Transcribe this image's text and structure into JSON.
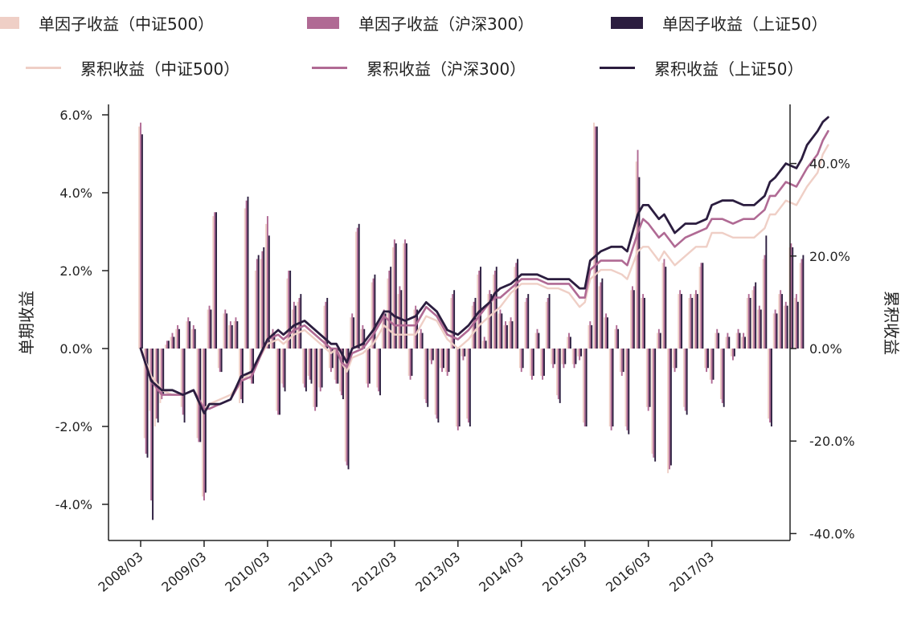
{
  "colors": {
    "zz500": "#efcfc6",
    "hs300": "#b06a94",
    "sz50": "#2b1d3f",
    "axis": "#222222"
  },
  "legend": {
    "bars": [
      {
        "key": "zz500",
        "label": "单因子收益（中证500）"
      },
      {
        "key": "hs300",
        "label": "单因子收益（沪深300）"
      },
      {
        "key": "sz50",
        "label": "单因子收益（上证50）"
      }
    ],
    "lines": [
      {
        "key": "zz500",
        "label": "累积收益（中证500）"
      },
      {
        "key": "hs300",
        "label": "累积收益（沪深300）"
      },
      {
        "key": "sz50",
        "label": "累积收益（上证50）"
      }
    ]
  },
  "chart_data": {
    "type": "bar+line",
    "title": "",
    "ylabel_left": "单期收益",
    "ylabel_right": "累积收益",
    "ylim_left": [
      -5.0,
      6.5
    ],
    "ylim_right": [
      -41.0,
      53.0
    ],
    "yticks_left": [
      "6.0%",
      "4.0%",
      "2.0%",
      "0.0%",
      "-2.0%",
      "-4.0%"
    ],
    "yticks_left_values": [
      6,
      4,
      2,
      0,
      -2,
      -4
    ],
    "yticks_right": [
      "40.0%",
      "20.0%",
      "0.0%",
      "-20.0%",
      "-40.0%"
    ],
    "yticks_right_values": [
      40,
      20,
      0,
      -20,
      -40
    ],
    "xticks": [
      "2008/03",
      "2009/03",
      "2010/03",
      "2011/03",
      "2012/03",
      "2013/03",
      "2014/03",
      "2015/03",
      "2016/03",
      "2017/03"
    ],
    "xtick_index": [
      0,
      12,
      24,
      36,
      48,
      60,
      72,
      84,
      96,
      108
    ],
    "x_start": "2008/03",
    "x_end": "2017/10",
    "legend_position": "top",
    "bars": {
      "zz500": [
        5.7,
        -2.3,
        -1.6,
        -2.0,
        -1.4,
        0.1,
        0.3,
        0.5,
        -1.5,
        0.7,
        0.5,
        -2.3,
        -3.8,
        1.0,
        3.4,
        -0.5,
        0.9,
        0.6,
        0.7,
        -1.4,
        3.6,
        -0.8,
        2.0,
        2.3,
        3.2,
        0.4,
        -1.6,
        -0.9,
        1.8,
        1.0,
        1.2,
        -0.9,
        -0.7,
        -1.5,
        -1.0,
        1.1,
        -0.5,
        -0.8,
        -1.1,
        -2.9,
        0.8,
        3.0,
        0.5,
        -0.9,
        1.7,
        -1.0,
        0.9,
        1.8,
        2.6,
        1.4,
        2.7,
        -0.7,
        1.0,
        0.4,
        -1.3,
        -0.3,
        -1.7,
        -0.5,
        -0.6,
        1.3,
        -2.0,
        -0.2,
        -1.8,
        1.1,
        1.9,
        0.2,
        1.4,
        1.9,
        0.9,
        0.6,
        0.7,
        2.1,
        -0.5,
        1.2,
        -0.7,
        0.4,
        -0.7,
        1.2,
        -0.4,
        -1.2,
        -0.4,
        0.3,
        -0.4,
        -0.2,
        -1.9,
        0.6,
        5.8,
        1.6,
        0.8,
        -2.0,
        0.5,
        -0.6,
        -2.0,
        1.5,
        4.8,
        1.3,
        -1.5,
        -2.7,
        0.4,
        2.2,
        -3.2,
        -0.5,
        1.4,
        -1.5,
        1.3,
        1.4,
        2.1,
        -0.5,
        -0.8,
        0.4,
        -1.3,
        0.3,
        -0.2,
        0.4,
        0.3,
        1.3,
        1.5,
        1.0,
        2.3,
        -1.8,
        0.9,
        1.4,
        1.1,
        2.6,
        1.3,
        2.2
      ],
      "hs300": [
        5.8,
        -2.7,
        -3.9,
        -1.8,
        -1.3,
        0.2,
        0.4,
        0.6,
        -1.7,
        0.8,
        0.6,
        -2.4,
        -3.9,
        1.1,
        3.5,
        -0.6,
        1.0,
        0.7,
        0.8,
        -1.3,
        3.8,
        -0.9,
        2.3,
        2.5,
        3.4,
        0.5,
        -1.7,
        -1.0,
        2.0,
        1.2,
        1.3,
        -1.0,
        -0.8,
        -1.6,
        -1.1,
        1.2,
        -0.6,
        -0.9,
        -1.2,
        -3.0,
        0.9,
        3.1,
        0.6,
        -1.0,
        1.8,
        -1.1,
        1.0,
        2.0,
        2.8,
        1.6,
        2.8,
        -0.8,
        1.1,
        0.5,
        -1.4,
        -0.4,
        -1.8,
        -0.6,
        -0.7,
        1.4,
        -2.1,
        -0.3,
        -1.9,
        1.2,
        2.0,
        0.3,
        1.5,
        2.0,
        1.0,
        0.7,
        0.8,
        2.2,
        -0.6,
        1.3,
        -0.8,
        0.5,
        -0.8,
        1.3,
        -0.5,
        -1.3,
        -0.5,
        0.4,
        -0.5,
        -0.3,
        -2.0,
        0.7,
        5.7,
        1.7,
        0.9,
        -2.1,
        0.6,
        -0.7,
        -2.1,
        1.6,
        5.1,
        1.4,
        -1.6,
        -2.8,
        0.5,
        2.3,
        -3.1,
        -0.6,
        1.5,
        -1.6,
        1.4,
        1.5,
        2.2,
        -0.6,
        -0.9,
        0.5,
        -1.4,
        0.4,
        -0.3,
        0.5,
        0.4,
        1.4,
        1.6,
        1.1,
        2.4,
        -1.9,
        1.0,
        1.5,
        1.2,
        2.7,
        1.4,
        2.3
      ],
      "sz50": [
        5.5,
        -2.8,
        -4.4,
        -1.9,
        -1.2,
        0.2,
        0.3,
        0.5,
        -1.9,
        0.7,
        0.5,
        -2.4,
        -3.7,
        1.0,
        3.5,
        -0.6,
        0.9,
        0.6,
        0.7,
        -1.4,
        3.9,
        -0.9,
        2.4,
        2.6,
        2.9,
        0.4,
        -1.7,
        -1.1,
        2.0,
        1.1,
        1.4,
        -1.1,
        -0.9,
        -1.5,
        -1.0,
        1.3,
        -0.5,
        -0.9,
        -1.3,
        -3.1,
        0.8,
        3.2,
        0.5,
        -0.9,
        1.9,
        -1.2,
        0.9,
        2.1,
        2.7,
        1.5,
        2.7,
        -0.7,
        1.0,
        0.4,
        -1.5,
        -0.3,
        -1.9,
        -0.5,
        -0.6,
        1.5,
        -2.0,
        -0.2,
        -2.0,
        1.3,
        2.1,
        0.2,
        1.4,
        2.1,
        0.9,
        0.6,
        0.7,
        2.3,
        -0.5,
        1.4,
        -0.7,
        0.4,
        -0.7,
        1.4,
        -0.4,
        -1.4,
        -0.4,
        0.3,
        -0.4,
        -0.2,
        -2.0,
        0.6,
        5.7,
        1.8,
        0.8,
        -2.0,
        0.5,
        -0.6,
        -2.2,
        1.5,
        4.4,
        1.3,
        -1.5,
        -2.9,
        0.4,
        2.1,
        -3.0,
        -0.5,
        1.4,
        -1.7,
        1.3,
        1.4,
        2.2,
        -0.5,
        -0.8,
        0.4,
        -1.5,
        0.3,
        -0.2,
        0.4,
        0.3,
        1.3,
        1.7,
        1.0,
        2.9,
        -2.0,
        0.9,
        1.4,
        1.1,
        2.6,
        1.2,
        2.4
      ]
    },
    "cumulative": {
      "zz500": [
        [
          0,
          0
        ],
        [
          2,
          -6
        ],
        [
          4,
          -9
        ],
        [
          6,
          -10
        ],
        [
          8,
          -10
        ],
        [
          10,
          -9
        ],
        [
          12,
          -13
        ],
        [
          13,
          -12
        ],
        [
          15,
          -11
        ],
        [
          17,
          -10
        ],
        [
          19,
          -7
        ],
        [
          21,
          -5
        ],
        [
          24,
          1
        ],
        [
          26,
          2
        ],
        [
          27,
          1
        ],
        [
          29,
          3
        ],
        [
          31,
          4
        ],
        [
          32,
          3
        ],
        [
          34,
          1
        ],
        [
          36,
          -1
        ],
        [
          37,
          0
        ],
        [
          38,
          -3
        ],
        [
          39,
          -5
        ],
        [
          40,
          -2
        ],
        [
          42,
          -1
        ],
        [
          44,
          1
        ],
        [
          46,
          5
        ],
        [
          47,
          4
        ],
        [
          48,
          3
        ],
        [
          50,
          3
        ],
        [
          52,
          3
        ],
        [
          54,
          7
        ],
        [
          56,
          6
        ],
        [
          58,
          2
        ],
        [
          60,
          0
        ],
        [
          62,
          2
        ],
        [
          64,
          5
        ],
        [
          66,
          7
        ],
        [
          67,
          8
        ],
        [
          68,
          9
        ],
        [
          70,
          12
        ],
        [
          72,
          14
        ],
        [
          75,
          14
        ],
        [
          77,
          13
        ],
        [
          79,
          13
        ],
        [
          81,
          12
        ],
        [
          83,
          9
        ],
        [
          84,
          10
        ],
        [
          85,
          15
        ],
        [
          87,
          17
        ],
        [
          89,
          17
        ],
        [
          91,
          16
        ],
        [
          92,
          15
        ],
        [
          94,
          21
        ],
        [
          95,
          22
        ],
        [
          96,
          22
        ],
        [
          98,
          19
        ],
        [
          99,
          21
        ],
        [
          101,
          18
        ],
        [
          103,
          20
        ],
        [
          105,
          22
        ],
        [
          107,
          22
        ],
        [
          108,
          25
        ],
        [
          110,
          25
        ],
        [
          112,
          24
        ],
        [
          114,
          24
        ],
        [
          116,
          24
        ],
        [
          118,
          26
        ],
        [
          119,
          29
        ],
        [
          120,
          29
        ],
        [
          122,
          32
        ],
        [
          124,
          31
        ],
        [
          125,
          33
        ],
        [
          126,
          35
        ],
        [
          128,
          38
        ],
        [
          129,
          42
        ],
        [
          130,
          44
        ]
      ],
      "hs300": [
        [
          0,
          0
        ],
        [
          2,
          -7
        ],
        [
          4,
          -10
        ],
        [
          6,
          -10
        ],
        [
          8,
          -10
        ],
        [
          10,
          -9
        ],
        [
          12,
          -13
        ],
        [
          13,
          -13
        ],
        [
          15,
          -12
        ],
        [
          17,
          -11
        ],
        [
          19,
          -7
        ],
        [
          21,
          -6
        ],
        [
          24,
          2
        ],
        [
          26,
          3
        ],
        [
          27,
          2
        ],
        [
          29,
          4
        ],
        [
          31,
          5
        ],
        [
          32,
          4
        ],
        [
          34,
          2
        ],
        [
          36,
          0
        ],
        [
          37,
          0
        ],
        [
          38,
          -3
        ],
        [
          39,
          -4
        ],
        [
          40,
          -1
        ],
        [
          42,
          0
        ],
        [
          44,
          3
        ],
        [
          46,
          7
        ],
        [
          47,
          6
        ],
        [
          48,
          5
        ],
        [
          50,
          5
        ],
        [
          52,
          5
        ],
        [
          54,
          9
        ],
        [
          56,
          7
        ],
        [
          58,
          3
        ],
        [
          60,
          2
        ],
        [
          62,
          4
        ],
        [
          64,
          7
        ],
        [
          66,
          10
        ],
        [
          67,
          11
        ],
        [
          68,
          11
        ],
        [
          70,
          13
        ],
        [
          72,
          15
        ],
        [
          75,
          15
        ],
        [
          77,
          14
        ],
        [
          79,
          14
        ],
        [
          81,
          14
        ],
        [
          83,
          11
        ],
        [
          84,
          11
        ],
        [
          85,
          17
        ],
        [
          87,
          19
        ],
        [
          89,
          19
        ],
        [
          91,
          19
        ],
        [
          92,
          18
        ],
        [
          94,
          25
        ],
        [
          95,
          28
        ],
        [
          96,
          27
        ],
        [
          98,
          24
        ],
        [
          99,
          25
        ],
        [
          101,
          22
        ],
        [
          103,
          24
        ],
        [
          105,
          25
        ],
        [
          107,
          26
        ],
        [
          108,
          28
        ],
        [
          110,
          28
        ],
        [
          112,
          27
        ],
        [
          114,
          28
        ],
        [
          116,
          28
        ],
        [
          118,
          30
        ],
        [
          119,
          33
        ],
        [
          120,
          33
        ],
        [
          122,
          36
        ],
        [
          124,
          35
        ],
        [
          125,
          37
        ],
        [
          126,
          39
        ],
        [
          128,
          42
        ],
        [
          129,
          45
        ],
        [
          130,
          47
        ]
      ],
      "sz50": [
        [
          0,
          0
        ],
        [
          2,
          -7
        ],
        [
          4,
          -9
        ],
        [
          6,
          -9
        ],
        [
          8,
          -10
        ],
        [
          10,
          -9
        ],
        [
          12,
          -14
        ],
        [
          13,
          -12
        ],
        [
          15,
          -12
        ],
        [
          17,
          -11
        ],
        [
          19,
          -6
        ],
        [
          21,
          -5
        ],
        [
          24,
          2
        ],
        [
          26,
          4
        ],
        [
          27,
          3
        ],
        [
          29,
          5
        ],
        [
          31,
          6
        ],
        [
          32,
          5
        ],
        [
          34,
          3
        ],
        [
          36,
          1
        ],
        [
          37,
          1
        ],
        [
          38,
          -1
        ],
        [
          39,
          -3
        ],
        [
          40,
          0
        ],
        [
          42,
          1
        ],
        [
          44,
          4
        ],
        [
          46,
          8
        ],
        [
          47,
          8
        ],
        [
          48,
          7
        ],
        [
          50,
          6
        ],
        [
          52,
          7
        ],
        [
          54,
          10
        ],
        [
          56,
          8
        ],
        [
          58,
          4
        ],
        [
          60,
          3
        ],
        [
          62,
          5
        ],
        [
          64,
          8
        ],
        [
          66,
          10
        ],
        [
          67,
          12
        ],
        [
          68,
          13
        ],
        [
          70,
          14
        ],
        [
          72,
          16
        ],
        [
          75,
          16
        ],
        [
          77,
          15
        ],
        [
          79,
          15
        ],
        [
          81,
          15
        ],
        [
          83,
          13
        ],
        [
          84,
          13
        ],
        [
          85,
          19
        ],
        [
          87,
          21
        ],
        [
          89,
          22
        ],
        [
          91,
          22
        ],
        [
          92,
          21
        ],
        [
          94,
          29
        ],
        [
          95,
          31
        ],
        [
          96,
          31
        ],
        [
          98,
          28
        ],
        [
          99,
          29
        ],
        [
          101,
          25
        ],
        [
          103,
          27
        ],
        [
          105,
          27
        ],
        [
          107,
          28
        ],
        [
          108,
          31
        ],
        [
          110,
          32
        ],
        [
          112,
          32
        ],
        [
          114,
          31
        ],
        [
          116,
          31
        ],
        [
          118,
          33
        ],
        [
          119,
          36
        ],
        [
          120,
          37
        ],
        [
          122,
          40
        ],
        [
          124,
          39
        ],
        [
          125,
          41
        ],
        [
          126,
          44
        ],
        [
          128,
          47
        ],
        [
          129,
          49
        ],
        [
          130,
          50
        ]
      ]
    }
  }
}
